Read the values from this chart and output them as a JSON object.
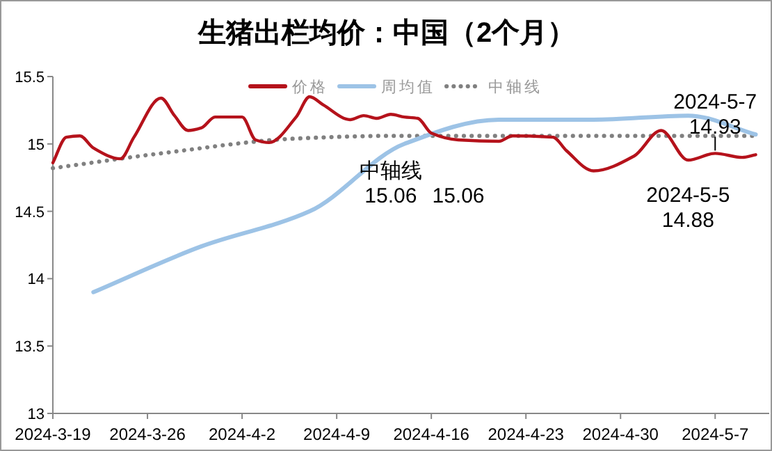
{
  "chart_data": {
    "type": "line",
    "title": "生猪出栏均价：中国（2个月）",
    "legend": "top",
    "grid": false,
    "xlim": [
      "2024-03-19",
      "2024-05-11"
    ],
    "xticks": [
      {
        "value": "2024-03-19",
        "label": "2024-3-19"
      },
      {
        "value": "2024-03-26",
        "label": "2024-3-26"
      },
      {
        "value": "2024-04-02",
        "label": "2024-4-2"
      },
      {
        "value": "2024-04-09",
        "label": "2024-4-9"
      },
      {
        "value": "2024-04-16",
        "label": "2024-4-16"
      },
      {
        "value": "2024-04-23",
        "label": "2024-4-23"
      },
      {
        "value": "2024-04-30",
        "label": "2024-4-30"
      },
      {
        "value": "2024-05-07",
        "label": "2024-5-7"
      }
    ],
    "ylim": [
      13,
      15.5
    ],
    "yticks": [
      13,
      13.5,
      14,
      14.5,
      15,
      15.5
    ],
    "series": [
      {
        "name": "价格",
        "color": "#b5121b",
        "line_style": "solid",
        "x": [
          "2024-03-19",
          "2024-03-20",
          "2024-03-21",
          "2024-03-22",
          "2024-03-24",
          "2024-03-25",
          "2024-03-27",
          "2024-03-28",
          "2024-03-29",
          "2024-03-30",
          "2024-03-31",
          "2024-04-02",
          "2024-04-03",
          "2024-04-04",
          "2024-04-06",
          "2024-04-07",
          "2024-04-08",
          "2024-04-10",
          "2024-04-11",
          "2024-04-12",
          "2024-04-13",
          "2024-04-14",
          "2024-04-15",
          "2024-04-16",
          "2024-04-18",
          "2024-04-21",
          "2024-04-22",
          "2024-04-25",
          "2024-04-26",
          "2024-04-28",
          "2024-05-01",
          "2024-05-03",
          "2024-05-05",
          "2024-05-07",
          "2024-05-09",
          "2024-05-10"
        ],
        "values": [
          14.86,
          15.05,
          15.06,
          14.97,
          14.89,
          15.05,
          15.34,
          15.21,
          15.1,
          15.12,
          15.2,
          15.2,
          15.03,
          15.01,
          15.2,
          15.35,
          15.29,
          15.18,
          15.21,
          15.19,
          15.22,
          15.2,
          15.19,
          15.08,
          15.03,
          15.02,
          15.06,
          15.05,
          14.95,
          14.8,
          14.91,
          15.1,
          14.88,
          14.93,
          14.9,
          14.92
        ]
      },
      {
        "name": "周均值",
        "color": "#9dc3e6",
        "line_style": "solid",
        "x": [
          "2024-03-22",
          "2024-03-30",
          "2024-04-07",
          "2024-04-14",
          "2024-04-21",
          "2024-04-28",
          "2024-05-05",
          "2024-05-10"
        ],
        "values": [
          13.9,
          14.24,
          14.5,
          15.0,
          15.18,
          15.18,
          15.21,
          15.07
        ]
      },
      {
        "name": "中轴线",
        "color": "#808080",
        "line_style": "dotted",
        "x": [
          "2024-03-19",
          "2024-03-27",
          "2024-04-06",
          "2024-04-13",
          "2024-05-10"
        ],
        "values": [
          14.82,
          14.93,
          15.04,
          15.06,
          15.06
        ]
      }
    ],
    "annotations": [
      {
        "text": "中轴线 15.06",
        "x": "2024-04-13",
        "y": 15.06
      },
      {
        "text": "15.06",
        "x": "2024-04-18",
        "y": 15.06
      },
      {
        "text": "2024-5-5 14.88",
        "x": "2024-05-05",
        "y": 14.88
      },
      {
        "text": "2024-5-7 14.93",
        "x": "2024-05-07",
        "y": 14.93
      }
    ]
  }
}
